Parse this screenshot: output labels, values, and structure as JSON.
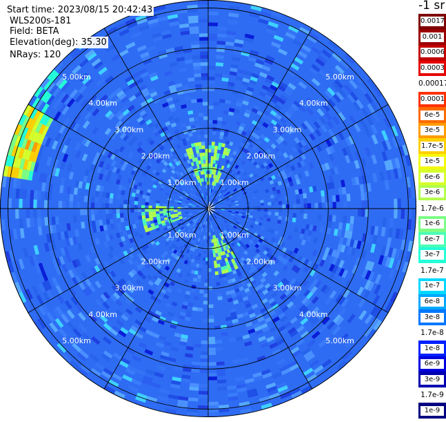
{
  "header": {
    "start_time": "Start time: 2023/08/15 20:42:43",
    "instrument": "WLS200s-181",
    "field": "Field: BETA",
    "elevation": "Elevation(deg): 35.30",
    "nrays": "NRays: 120"
  },
  "colorbar": {
    "unit": "-1 sr",
    "entries": [
      {
        "label": "0.0017",
        "color": "#7f0000"
      },
      {
        "label": "0.001",
        "color": "#9c0000"
      },
      {
        "label": "0.0006",
        "color": "#c20000"
      },
      {
        "label": "0.0003",
        "color": "#e60000"
      },
      {
        "label": "0.00017",
        "color": "#ffffff"
      },
      {
        "label": "0.0001",
        "color": "#ff3000"
      },
      {
        "label": "6e-5",
        "color": "#ff6a00"
      },
      {
        "label": "3e-5",
        "color": "#ff9c00"
      },
      {
        "label": "1.7e-5",
        "color": "#ffd000"
      },
      {
        "label": "1e-5",
        "color": "#f4f80a"
      },
      {
        "label": "6e-6",
        "color": "#d6ff2a"
      },
      {
        "label": "3e-6",
        "color": "#b4ff4c"
      },
      {
        "label": "1.7e-6",
        "color": "#ffffff"
      },
      {
        "label": "1e-6",
        "color": "#7cff84"
      },
      {
        "label": "6e-7",
        "color": "#4cffb4"
      },
      {
        "label": "3e-7",
        "color": "#24ffd8"
      },
      {
        "label": "1.7e-7",
        "color": "#ffffff"
      },
      {
        "label": "1e-7",
        "color": "#00d8ff"
      },
      {
        "label": "6e-8",
        "color": "#00a8ff"
      },
      {
        "label": "3e-8",
        "color": "#0078ff"
      },
      {
        "label": "1.7e-8",
        "color": "#ffffff"
      },
      {
        "label": "1e-8",
        "color": "#0020ff"
      },
      {
        "label": "6e-9",
        "color": "#0000e0"
      },
      {
        "label": "3e-9",
        "color": "#0000b0"
      },
      {
        "label": "1.7e-9",
        "color": "#ffffff"
      },
      {
        "label": "1e-9",
        "color": "#000080"
      }
    ]
  },
  "chart_data": {
    "type": "heatmap",
    "projection": "polar",
    "grid": true,
    "range_rings_km": [
      1,
      2,
      3,
      4,
      5
    ],
    "max_range_km": 5.2,
    "ring_labels": [
      "1.00km",
      "2.00km",
      "3.00km",
      "4.00km",
      "5.00km"
    ],
    "spoke_angles_deg": [
      0,
      30,
      60,
      90,
      120,
      150,
      180,
      210,
      240,
      270,
      300,
      330
    ],
    "nrays": 120,
    "typical_value": "3e-8",
    "notable_regions": [
      {
        "description": "enhanced",
        "azimuth_deg": [
          275,
          300
        ],
        "range_km": [
          4.5,
          5.2
        ],
        "value_range": [
          "3e-7",
          "6e-5"
        ]
      },
      {
        "description": "enhanced",
        "azimuth_deg": [
          340,
          20
        ],
        "range_km": [
          0.5,
          1.6
        ],
        "value_range": [
          "1e-7",
          "1e-6"
        ]
      },
      {
        "description": "enhanced",
        "azimuth_deg": [
          250,
          270
        ],
        "range_km": [
          0.6,
          1.6
        ],
        "value_range": [
          "1e-7",
          "1e-6"
        ]
      }
    ]
  }
}
